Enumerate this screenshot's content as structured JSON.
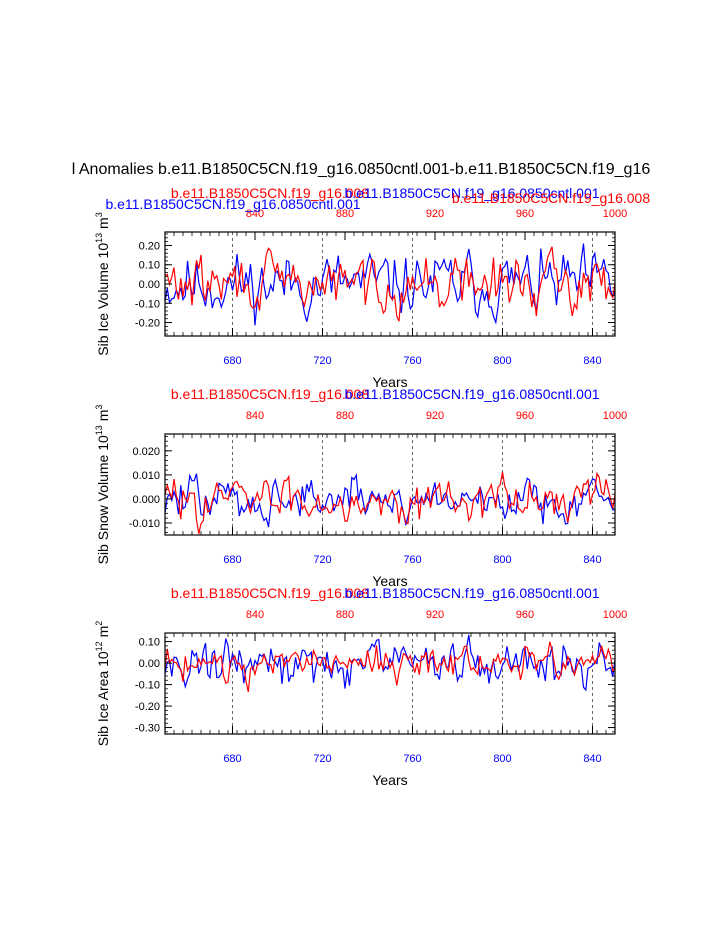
{
  "title": "l Anomalies b.e11.B1850C5CN.f19_g16.0850cntl.001-b.e11.B1850C5CN.f19_g16",
  "colors": {
    "series_a": "#0000ff",
    "series_b": "#ff0000",
    "axis": "#000000",
    "grid": "#000000"
  },
  "series_names": {
    "a": "b.e11.B1850C5CN.f19_g16.0850cntl.001",
    "b": "b.e11.B1850C5CN.f19_g16.008"
  },
  "chart_data": [
    {
      "type": "line",
      "ylabel": "Sib Ice Volume 10",
      "ylabel_exp": "13",
      "ylabel_unit": " m",
      "ylabel_unit_exp": "3",
      "xlabel": "Years",
      "top_title_left": "b.e11.B1850C5CN.f19_g16.0850cntl.001",
      "top_title_mid": "b.e11.B1850C5CN.f19_g16.008",
      "top_title_right": "b.e11.B1850C5CN.f19_g16.0850cntl.001",
      "top_title_right2": "b.e11.B1850C5CN.f19_g16.008",
      "ylim": [
        -0.27,
        0.27
      ],
      "yticks": [
        -0.2,
        -0.1,
        0.0,
        0.1,
        0.2
      ],
      "ytick_labels": [
        "-0.20",
        "-0.10",
        "0.00",
        "0.10",
        "0.20"
      ],
      "xlim_bottom": [
        650,
        850
      ],
      "xticks_bottom": [
        680,
        720,
        760,
        800,
        840
      ],
      "xlim_top": [
        800,
        1000
      ],
      "xticks_top": [
        840,
        880,
        920,
        960,
        1000
      ],
      "grid_x": [
        680,
        720,
        760,
        800,
        840
      ],
      "series": [
        {
          "name": "b.e11.B1850C5CN.f19_g16.0850cntl.001",
          "amp": 0.13,
          "seed": 11
        },
        {
          "name": "b.e11.B1850C5CN.f19_g16.008",
          "amp": 0.11,
          "seed": 29
        }
      ]
    },
    {
      "type": "line",
      "ylabel": "Sib Snow Volume 10",
      "ylabel_exp": "13",
      "ylabel_unit": " m",
      "ylabel_unit_exp": "3",
      "xlabel": "Years",
      "top_title_left": "b.e11.B1850C5CN.f19_g16.008",
      "top_title_right": "b.e11.B1850C5CN.f19_g16.0850cntl.001",
      "ylim": [
        -0.015,
        0.027
      ],
      "yticks": [
        -0.01,
        0.0,
        0.01,
        0.02
      ],
      "ytick_labels": [
        "-0.010",
        "0.000",
        "0.010",
        "0.020"
      ],
      "xlim_bottom": [
        650,
        850
      ],
      "xticks_bottom": [
        680,
        720,
        760,
        800,
        840
      ],
      "xlim_top": [
        800,
        1000
      ],
      "xticks_top": [
        840,
        880,
        920,
        960,
        1000
      ],
      "grid_x": [
        680,
        720,
        760,
        800,
        840
      ],
      "series": [
        {
          "name": "b.e11.B1850C5CN.f19_g16.0850cntl.001",
          "amp": 0.0075,
          "seed": 47
        },
        {
          "name": "b.e11.B1850C5CN.f19_g16.008",
          "amp": 0.007,
          "seed": 83
        }
      ]
    },
    {
      "type": "line",
      "ylabel": "Sib Ice Area 10",
      "ylabel_exp": "12",
      "ylabel_unit": " m",
      "ylabel_unit_exp": "2",
      "xlabel": "Years",
      "top_title_left": "b.e11.B1850C5CN.f19_g16.008",
      "top_title_right": "b.e11.B1850C5CN.f19_g16.0850cntl.001",
      "ylim": [
        -0.33,
        0.14
      ],
      "yticks": [
        -0.3,
        -0.2,
        -0.1,
        0.0,
        0.1
      ],
      "ytick_labels": [
        "-0.30",
        "-0.20",
        "-0.10",
        "0.00",
        "0.10"
      ],
      "xlim_bottom": [
        650,
        850
      ],
      "xticks_bottom": [
        680,
        720,
        760,
        800,
        840
      ],
      "xlim_top": [
        800,
        1000
      ],
      "xticks_top": [
        840,
        880,
        920,
        960,
        1000
      ],
      "grid_x": [
        680,
        720,
        760,
        800,
        840
      ],
      "series": [
        {
          "name": "b.e11.B1850C5CN.f19_g16.0850cntl.001",
          "amp": 0.085,
          "seed": 131
        },
        {
          "name": "b.e11.B1850C5CN.f19_g16.008",
          "amp": 0.065,
          "seed": 197
        }
      ]
    }
  ]
}
